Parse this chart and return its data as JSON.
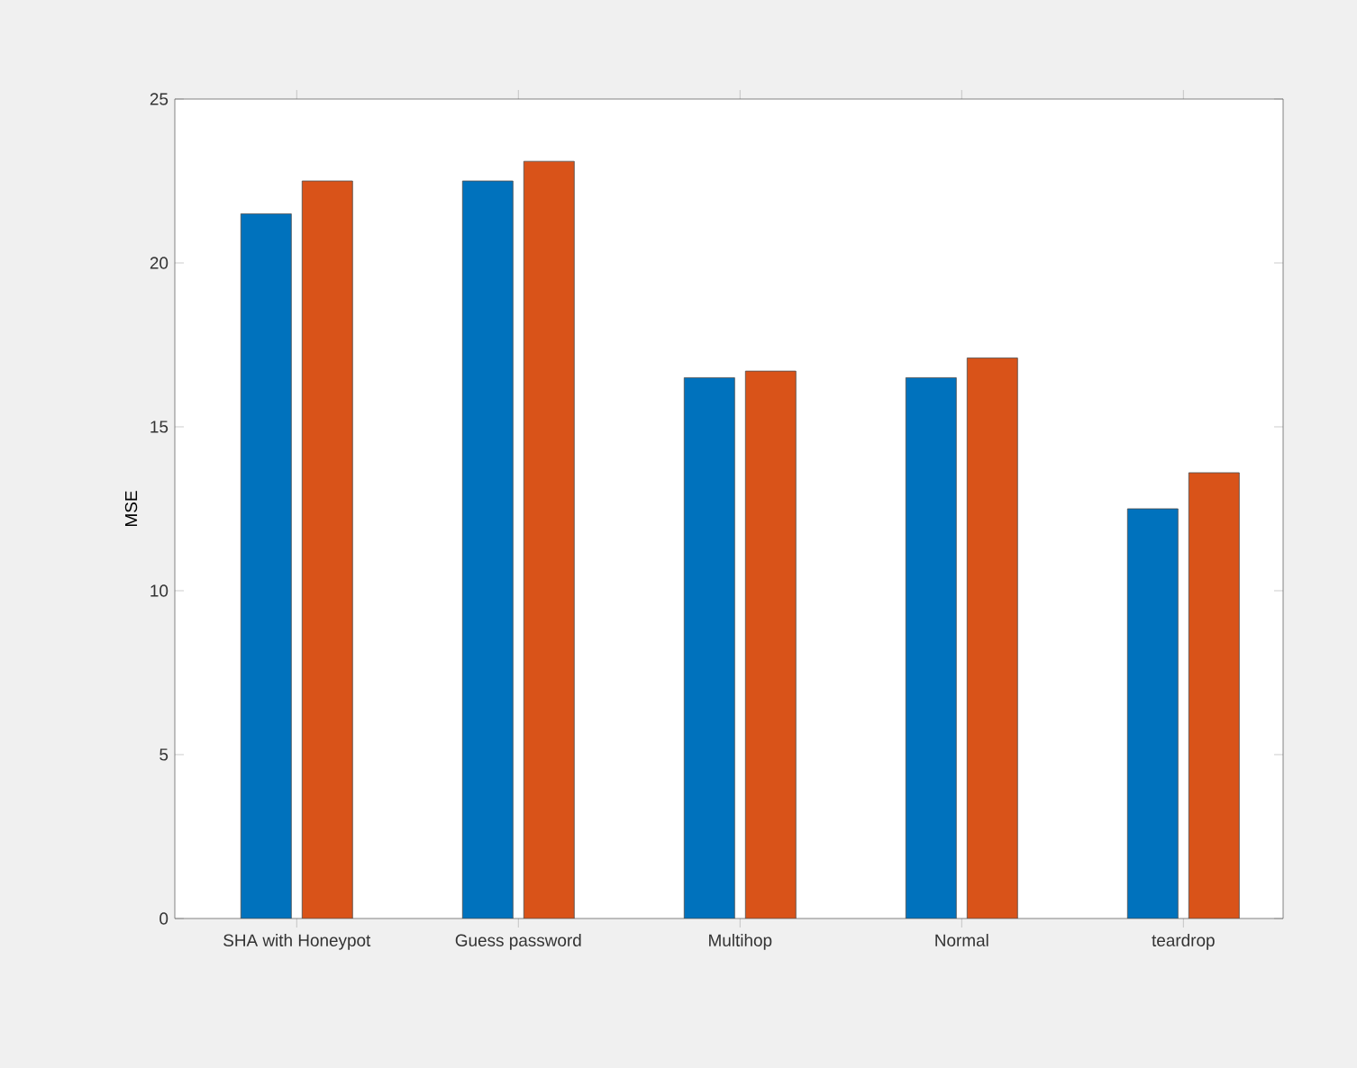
{
  "chart_data": {
    "type": "bar",
    "ylabel": "MSE",
    "categories": [
      "SHA with Honeypot",
      "Guess password",
      "Multihop",
      "Normal",
      "teardrop"
    ],
    "series": [
      {
        "color": "#0072bd",
        "values": [
          21.5,
          22.5,
          16.5,
          16.5,
          12.5
        ]
      },
      {
        "color": "#d95319",
        "values": [
          22.5,
          23.1,
          16.7,
          17.1,
          13.6
        ]
      }
    ],
    "ylim": [
      0,
      25
    ],
    "yticks": [
      0,
      5,
      10,
      15,
      20,
      25
    ]
  }
}
